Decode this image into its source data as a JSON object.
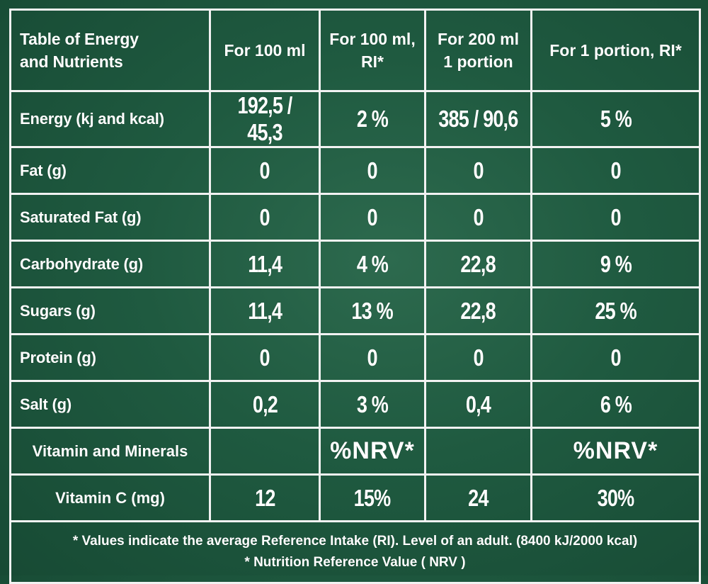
{
  "header": {
    "label_line1": "Table of Energy",
    "label_line2": "and Nutrients",
    "col1": "For 100 ml",
    "col2_line1": "For 100 ml,",
    "col2_line2": "RI*",
    "col3_line1": "For 200 ml",
    "col3_line2": "1 portion",
    "col4": "For 1 portion, RI*"
  },
  "rows": [
    {
      "label": "Energy (kj and kcal)",
      "v1": "192,5 / 45,3",
      "v2": "2 %",
      "v3": "385 / 90,6",
      "v4": "5 %"
    },
    {
      "label": "Fat (g)",
      "v1": "0",
      "v2": "0",
      "v3": "0",
      "v4": "0"
    },
    {
      "label": "Saturated Fat (g)",
      "v1": "0",
      "v2": "0",
      "v3": "0",
      "v4": "0"
    },
    {
      "label": "Carbohydrate (g)",
      "v1": "11,4",
      "v2": "4 %",
      "v3": "22,8",
      "v4": "9 %"
    },
    {
      "label": "Sugars (g)",
      "v1": "11,4",
      "v2": "13 %",
      "v3": "22,8",
      "v4": "25 %"
    },
    {
      "label": "Protein (g)",
      "v1": "0",
      "v2": "0",
      "v3": "0",
      "v4": "0"
    },
    {
      "label": "Salt (g)",
      "v1": "0,2",
      "v2": "3 %",
      "v3": "0,4",
      "v4": "6 %"
    }
  ],
  "vitamins_row": {
    "label": "Vitamin and Minerals",
    "v2": "%NRV*",
    "v4": "%NRV*"
  },
  "vitamin_c_row": {
    "label": "Vitamin C (mg)",
    "v1": "12",
    "v2": "15%",
    "v3": "24",
    "v4": "30%"
  },
  "footer": {
    "line1": "* Values indicate the average Reference Intake (RI). Level of an adult. (8400 kJ/2000 kcal)",
    "line2": "* Nutrition Reference Value ( NRV )"
  },
  "colors": {
    "background": "#1f5a40",
    "border": "#f2f2f2",
    "text": "#ffffff"
  }
}
